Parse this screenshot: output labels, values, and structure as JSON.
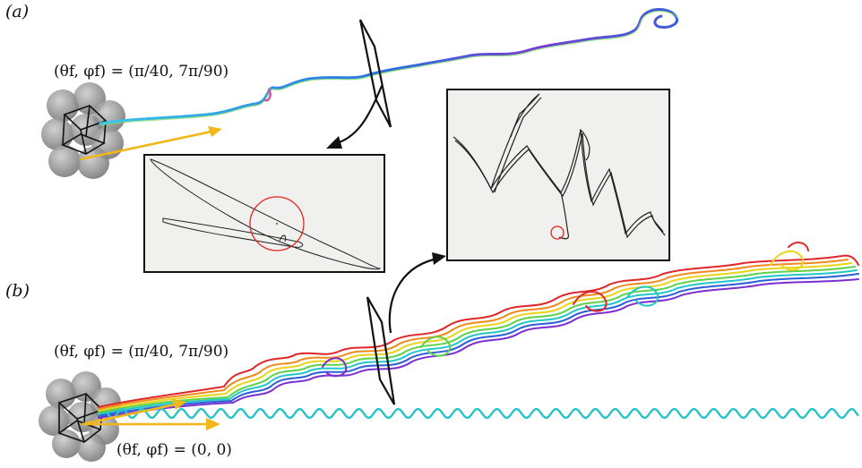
{
  "figure": {
    "panel_a": {
      "label": "(a)",
      "angle_label": "(θf, φf) = (π/40, 7π/90)"
    },
    "panel_b": {
      "label": "(b)",
      "angle_label_upper": "(θf, φf) = (π/40, 7π/90)",
      "angle_label_lower": "(θf, φf) = (0, 0)"
    },
    "colors": {
      "flow_arrow": "#f2b619",
      "circle": "#e8221b",
      "inset_background": "#f0f0ee",
      "particle_shell": "#8a8a8a"
    }
  }
}
